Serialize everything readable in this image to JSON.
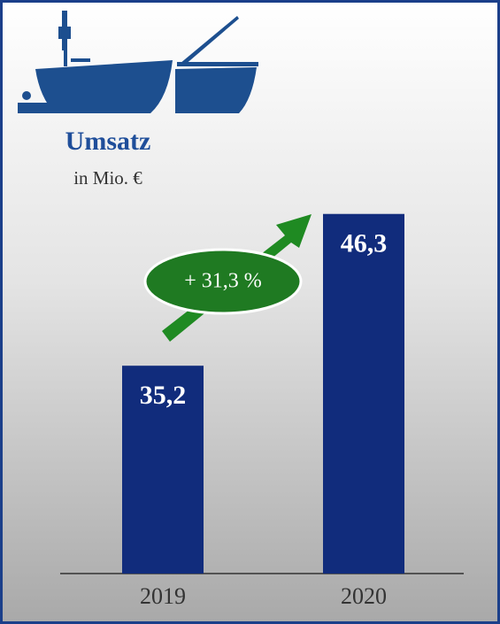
{
  "chart_data": {
    "type": "bar",
    "title": "Umsatz",
    "subtitle": "in Mio. €",
    "categories": [
      "2019",
      "2020"
    ],
    "values": [
      35.2,
      46.3
    ],
    "value_labels": [
      "35,2",
      "46,3"
    ],
    "color": "#112c7c",
    "ylim": [
      20,
      49
    ],
    "annotation": "+ 31,3 %"
  }
}
